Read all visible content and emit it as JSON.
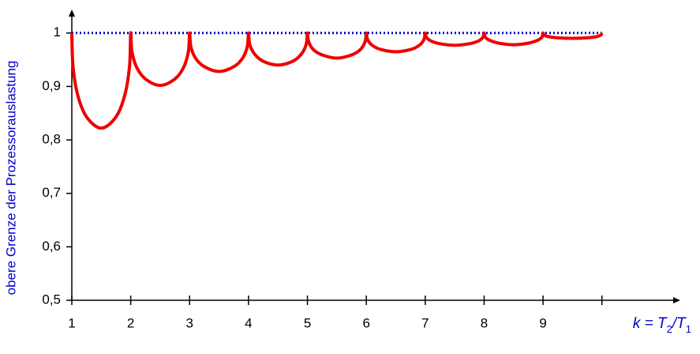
{
  "chart_data": {
    "type": "line",
    "ylabel": "obere Grenze der Prozessorauslastung",
    "xlabel": [
      {
        "text": "k = T"
      },
      {
        "text": "2",
        "sub": true
      },
      {
        "text": "/T"
      },
      {
        "text": "1",
        "sub": true
      }
    ],
    "x": [
      1,
      1.02,
      1.1,
      1.25,
      1.5,
      1.75,
      1.9,
      1.98,
      2,
      2.02,
      2.1,
      2.25,
      2.5,
      2.75,
      2.9,
      2.98,
      3,
      3.02,
      3.1,
      3.25,
      3.5,
      3.75,
      3.9,
      3.98,
      4,
      4.02,
      4.1,
      4.25,
      4.5,
      4.75,
      4.9,
      4.98,
      5,
      5.02,
      5.1,
      5.25,
      5.5,
      5.75,
      5.9,
      5.98,
      6,
      6.02,
      6.1,
      6.25,
      6.5,
      6.75,
      6.9,
      6.98,
      7,
      7.02,
      7.1,
      7.25,
      7.5,
      7.75,
      7.9,
      7.98,
      8,
      8.02,
      8.1,
      8.25,
      8.5,
      8.75,
      8.9,
      8.98,
      9,
      9.02,
      9.1,
      9.25,
      9.5,
      9.75,
      9.9,
      9.98,
      10
    ],
    "series": [
      {
        "color": "#ee0000",
        "values": [
          1,
          0.938,
          0.884,
          0.843,
          0.822,
          0.843,
          0.884,
          0.938,
          1,
          0.966,
          0.936,
          0.914,
          0.902,
          0.914,
          0.936,
          0.966,
          1,
          0.975,
          0.953,
          0.937,
          0.928,
          0.937,
          0.953,
          0.975,
          1,
          0.979,
          0.961,
          0.947,
          0.94,
          0.947,
          0.961,
          0.979,
          1,
          0.984,
          0.969,
          0.959,
          0.953,
          0.959,
          0.969,
          0.984,
          1,
          0.988,
          0.977,
          0.969,
          0.965,
          0.969,
          0.977,
          0.988,
          1,
          0.992,
          0.985,
          0.98,
          0.977,
          0.98,
          0.985,
          0.992,
          1,
          0.992,
          0.986,
          0.981,
          0.978,
          0.981,
          0.986,
          0.992,
          1,
          0.996,
          0.993,
          0.991,
          0.99,
          0.991,
          0.993,
          0.996,
          1
        ]
      }
    ],
    "hline": {
      "value": 1,
      "color": "#0000cc"
    },
    "xlim": [
      1,
      11.33
    ],
    "ylim": [
      0.5,
      1.044
    ],
    "xticks": [
      1,
      2,
      3,
      4,
      5,
      6,
      7,
      8,
      9,
      10
    ],
    "yticks": [
      {
        "value": 0.5,
        "label": "0,5"
      },
      {
        "value": 0.6,
        "label": "0,6"
      },
      {
        "value": 0.7,
        "label": "0,7"
      },
      {
        "value": 0.8,
        "label": "0,8"
      },
      {
        "value": 0.9,
        "label": "0,9"
      },
      1
    ],
    "xtick_labels_hidden_from": 10
  }
}
